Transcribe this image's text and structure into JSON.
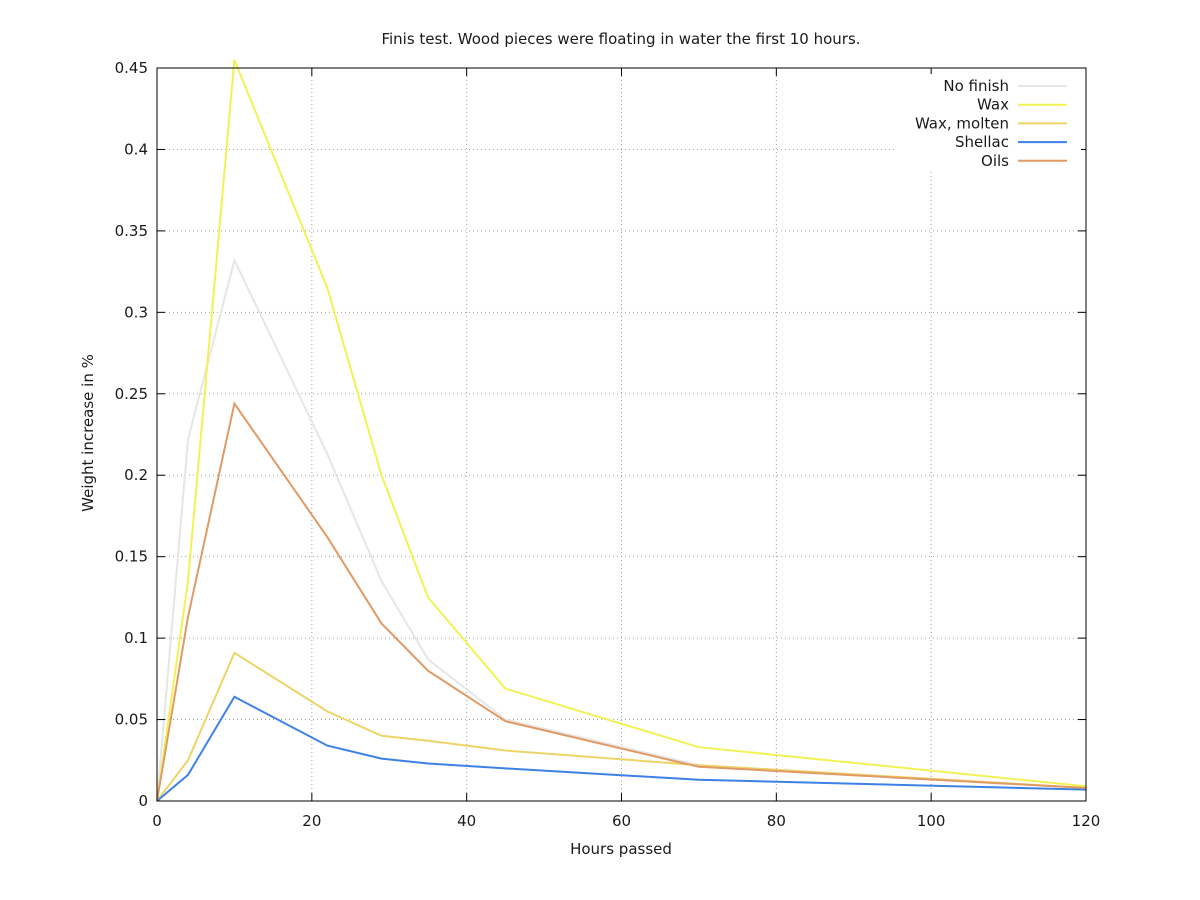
{
  "chart_data": {
    "type": "line",
    "title": "Finis test. Wood pieces were floating in water the first 10 hours.",
    "xlabel": "Hours passed",
    "ylabel": "Weight increase in %",
    "xlim": [
      0,
      120
    ],
    "ylim": [
      0,
      0.45
    ],
    "xticks": [
      0,
      20,
      40,
      60,
      80,
      100,
      120
    ],
    "yticks": [
      0,
      0.05,
      0.1,
      0.15,
      0.2,
      0.25,
      0.3,
      0.35,
      0.4,
      0.45
    ],
    "ytick_labels": [
      "0",
      "0.05",
      "0.1",
      "0.15",
      "0.2",
      "0.25",
      "0.3",
      "0.35",
      "0.4",
      "0.45"
    ],
    "grid": true,
    "legend_position": "top-right",
    "x": [
      0,
      4,
      10,
      22,
      29,
      35,
      45,
      70,
      120
    ],
    "series": [
      {
        "name": "No finish",
        "color": "#e6e6e6",
        "values": [
          0,
          0.222,
          0.332,
          0.213,
          0.135,
          0.087,
          0.05,
          0.022,
          0.008
        ]
      },
      {
        "name": "Wax",
        "color": "#f2f254",
        "values": [
          0,
          0.135,
          0.455,
          0.315,
          0.2,
          0.125,
          0.069,
          0.033,
          0.009
        ]
      },
      {
        "name": "Wax, molten",
        "color": "#edd467",
        "values": [
          0,
          0.025,
          0.091,
          0.055,
          0.04,
          0.037,
          0.031,
          0.022,
          0.008
        ]
      },
      {
        "name": "Shellac",
        "color": "#3c82e6",
        "values": [
          0,
          0.016,
          0.064,
          0.034,
          0.026,
          0.023,
          0.02,
          0.013,
          0.007
        ]
      },
      {
        "name": "Oils",
        "color": "#e09a65",
        "values": [
          0,
          0.113,
          0.244,
          0.162,
          0.109,
          0.08,
          0.049,
          0.021,
          0.008
        ]
      }
    ]
  }
}
